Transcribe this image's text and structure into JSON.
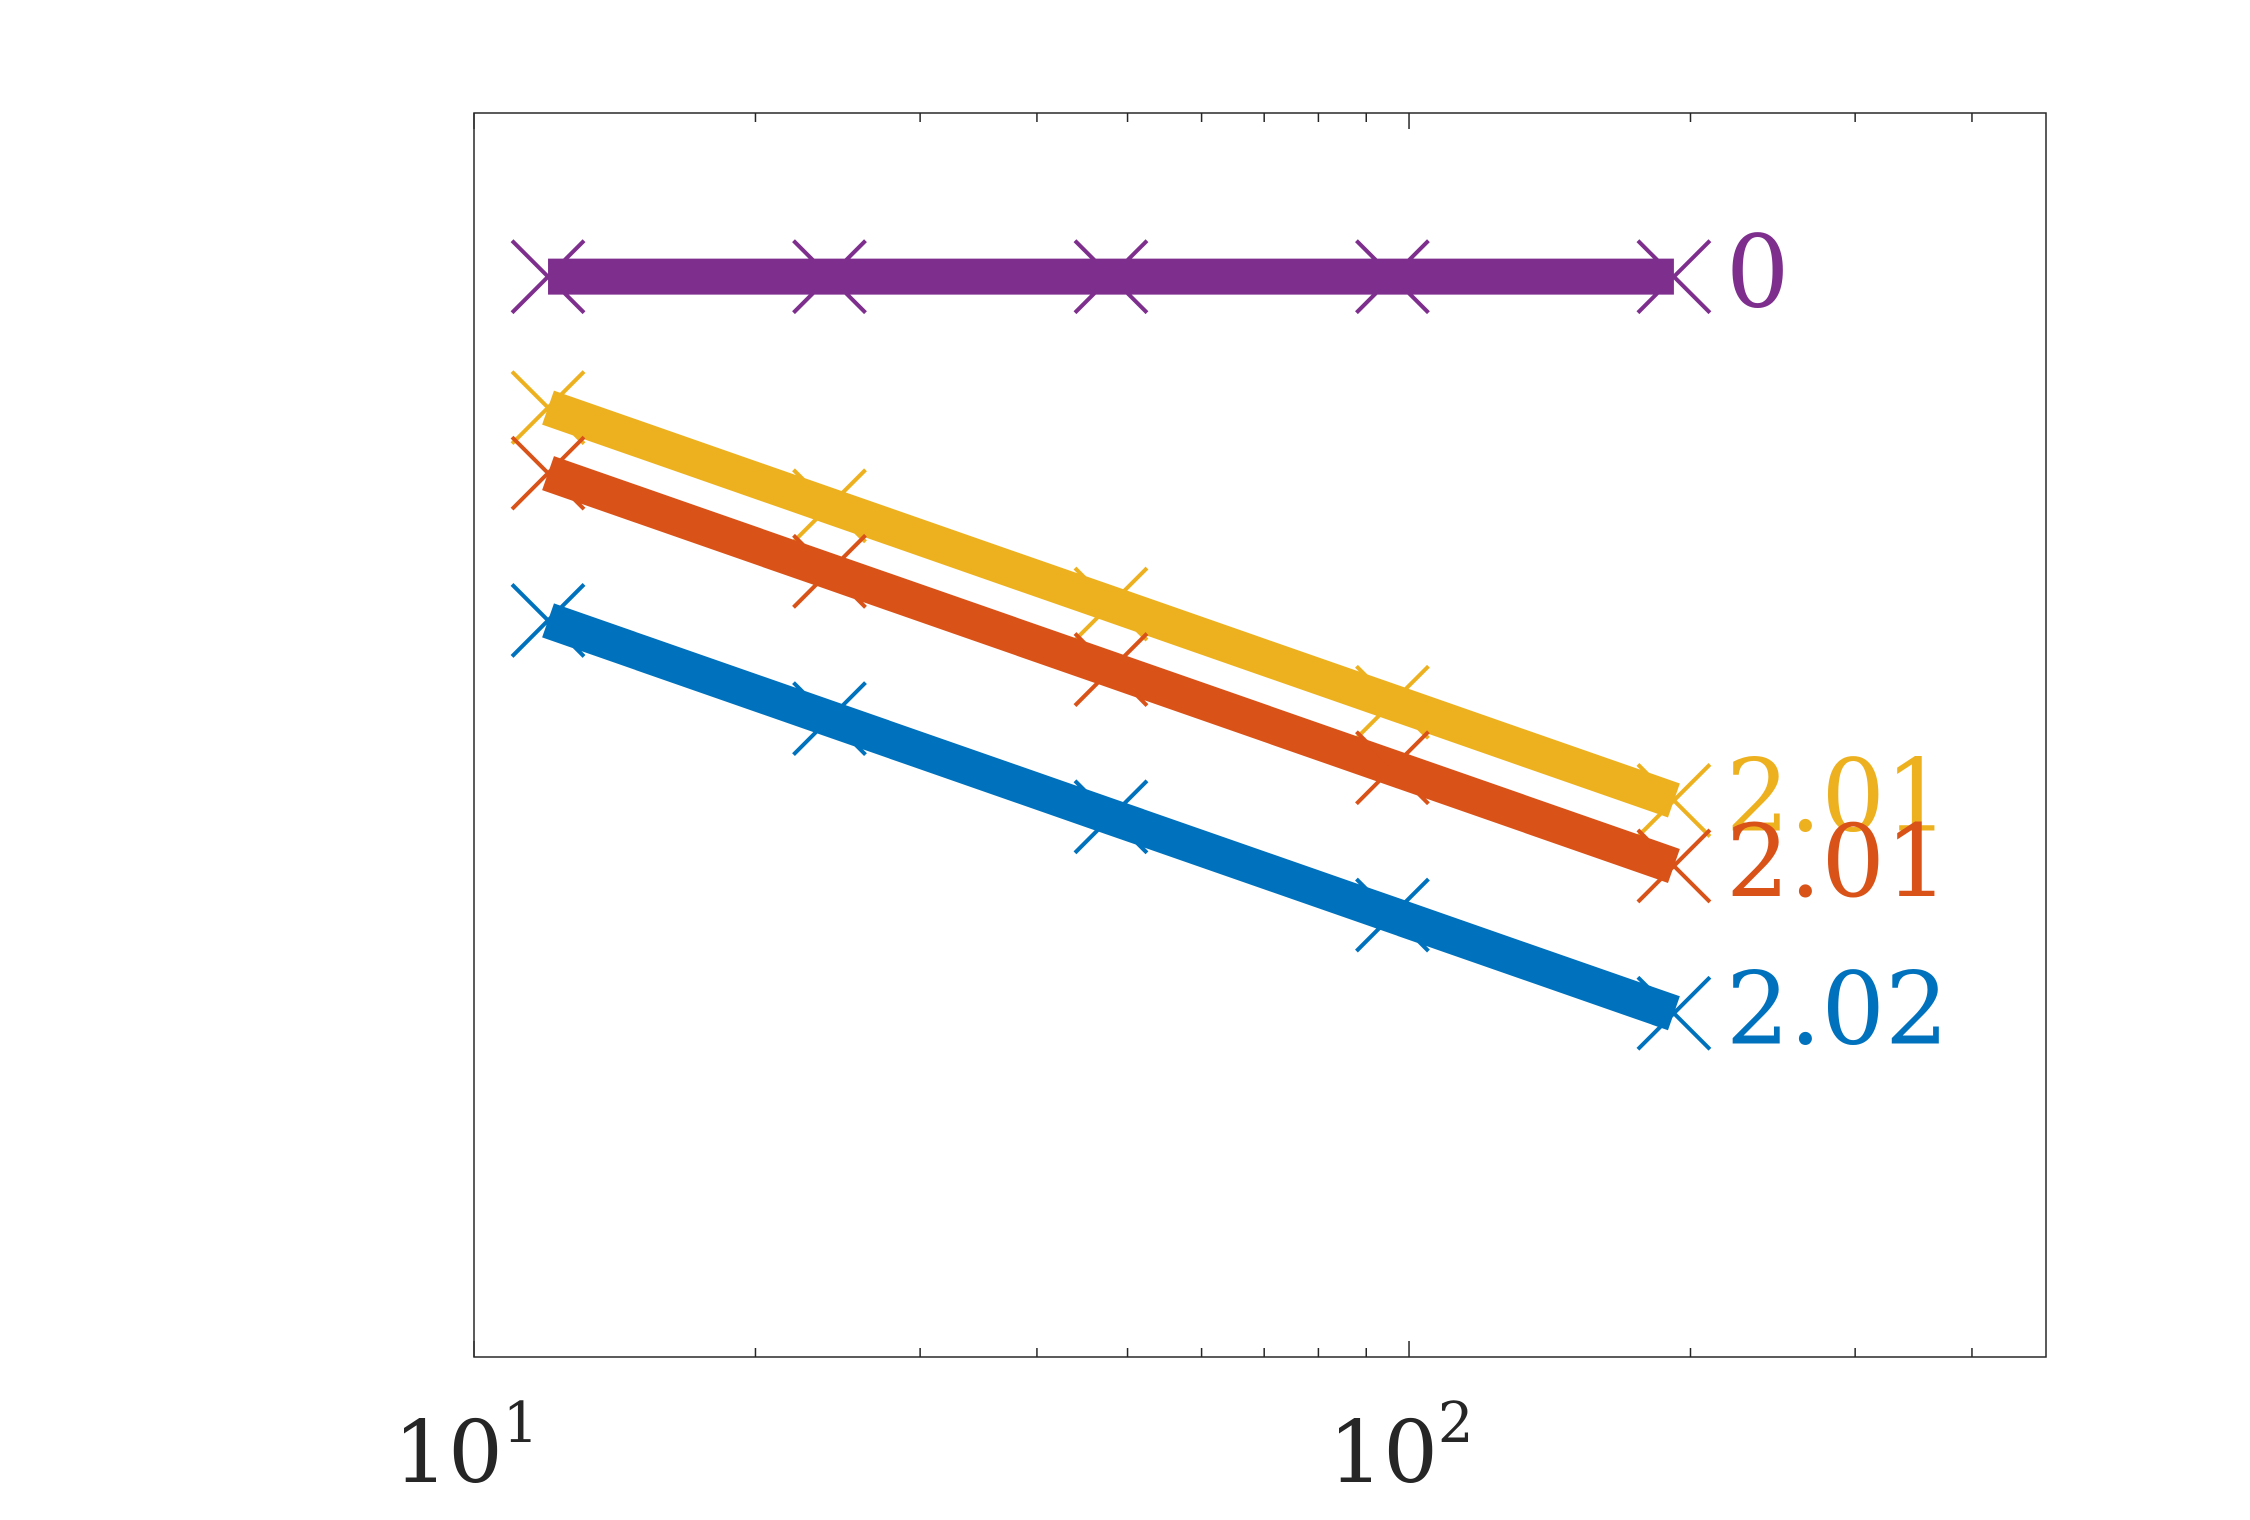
{
  "chart_data": {
    "type": "line",
    "title": "",
    "xlabel": "",
    "ylabel": "",
    "x_scale": "log",
    "y_scale": "log",
    "xlim": [
      10,
      480
    ],
    "ylim": [
      -7.9,
      -0.3
    ],
    "grid": false,
    "x_ticks": [
      {
        "value": 10,
        "base": "10",
        "exp": "1"
      },
      {
        "value": 100,
        "base": "10",
        "exp": "2"
      }
    ],
    "x": [
      12,
      24,
      48,
      96,
      192
    ],
    "series": [
      {
        "label": "0",
        "color": "#7e2f8e",
        "values": [
          -1.3,
          -1.3,
          -1.3,
          -1.3,
          -1.3
        ]
      },
      {
        "label": "2.01",
        "color": "#edb120",
        "values": [
          -2.1,
          -2.7,
          -3.3,
          -3.9,
          -4.5
        ]
      },
      {
        "label": "2.01",
        "color": "#d95319",
        "values": [
          -2.5,
          -3.1,
          -3.7,
          -4.3,
          -4.9
        ]
      },
      {
        "label": "2.02",
        "color": "#0072bd",
        "values": [
          -3.4,
          -4.0,
          -4.6,
          -5.2,
          -5.8
        ]
      }
    ]
  }
}
